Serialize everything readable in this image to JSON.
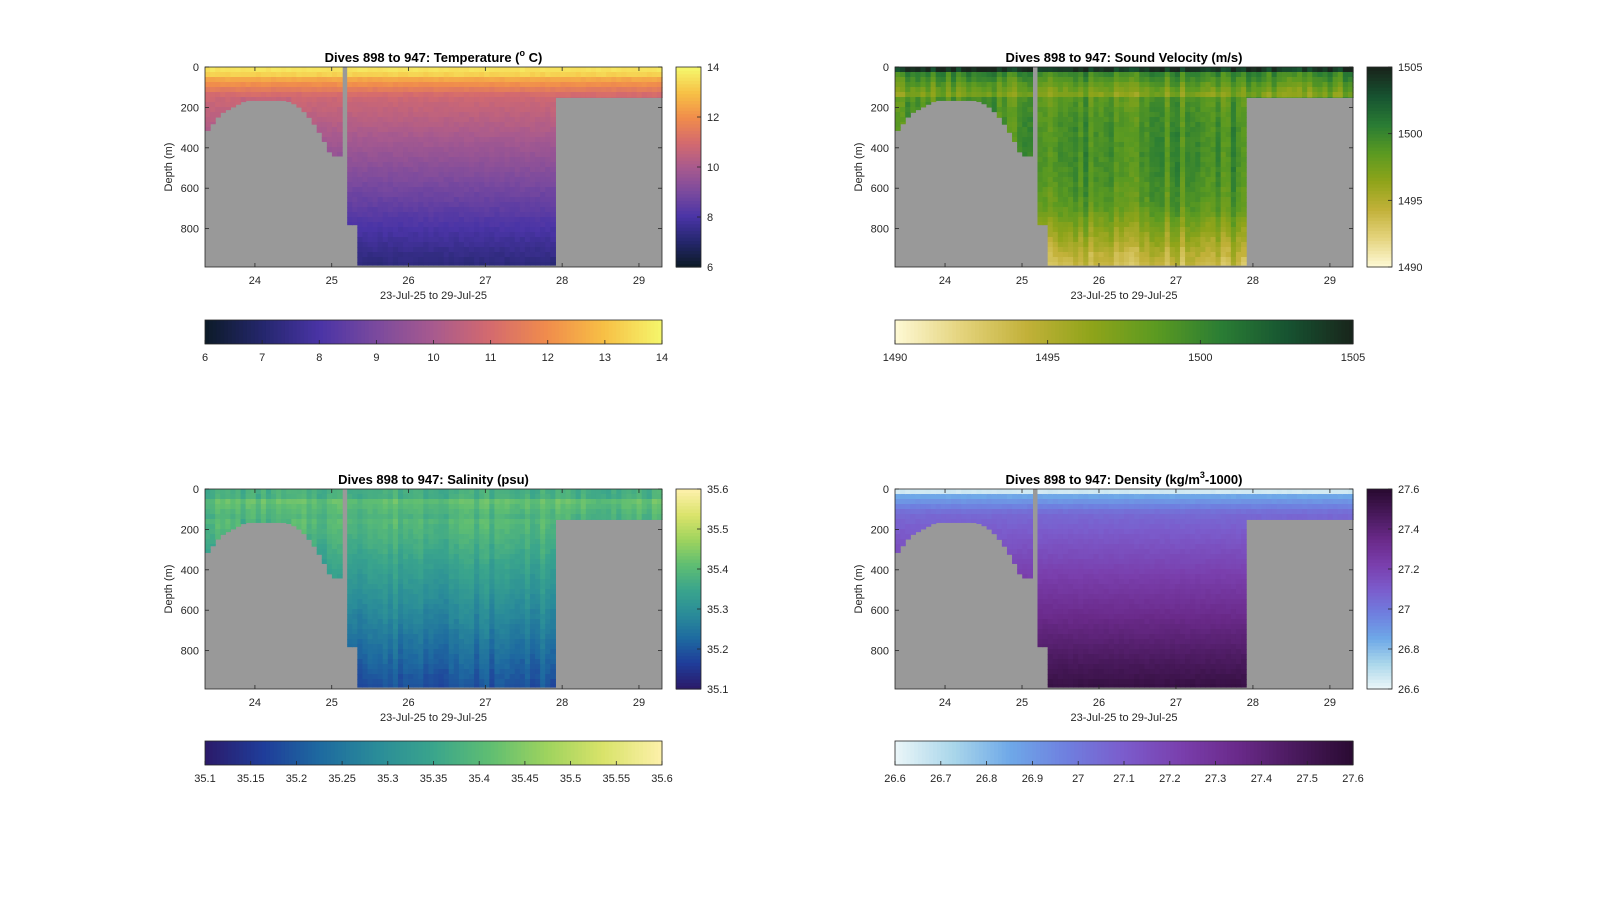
{
  "chart_data": [
    {
      "type": "heatmap",
      "variable": "temperature",
      "title": "Dives 898 to 947: Temperature (",
      "title_sup": "o",
      "title_suffix": " C)",
      "xlabel": "23-Jul-25 to 29-Jul-25",
      "ylabel": "Depth (m)",
      "xlim": [
        23.35,
        29.3
      ],
      "ylim": [
        0,
        990
      ],
      "xticks": [
        "24",
        "25",
        "26",
        "27",
        "28",
        "29"
      ],
      "yticks": [
        "0",
        "200",
        "400",
        "600",
        "800"
      ],
      "clim": [
        6,
        14
      ],
      "colorbar_vertical_ticks": [
        "6",
        "8",
        "10",
        "12",
        "14"
      ],
      "colorbar_horizontal_ticks": [
        "6",
        "7",
        "8",
        "9",
        "10",
        "11",
        "12",
        "13",
        "14"
      ],
      "colormap": [
        "#0d1b2a",
        "#25276e",
        "#4a34a6",
        "#7b4a9e",
        "#a85a8e",
        "#d46a6e",
        "#f08c4c",
        "#f7bf45",
        "#f5f56a"
      ],
      "no_data_color": "#999999"
    },
    {
      "type": "heatmap",
      "variable": "sound_velocity",
      "title": "Dives 898 to 947: Sound Velocity (m/s)",
      "xlabel": "23-Jul-25 to 29-Jul-25",
      "ylabel": "Depth (m)",
      "xlim": [
        23.35,
        29.3
      ],
      "ylim": [
        0,
        990
      ],
      "xticks": [
        "24",
        "25",
        "26",
        "27",
        "28",
        "29"
      ],
      "yticks": [
        "0",
        "200",
        "400",
        "600",
        "800"
      ],
      "clim": [
        1490,
        1505
      ],
      "colorbar_vertical_ticks": [
        "1490",
        "1495",
        "1500",
        "1505"
      ],
      "colorbar_horizontal_ticks": [
        "1490",
        "1495",
        "1500",
        "1505"
      ],
      "colormap": [
        "#fdf8d2",
        "#e4d37c",
        "#c2b139",
        "#8fa41a",
        "#5b9a21",
        "#2a7d34",
        "#175431",
        "#18261c"
      ],
      "no_data_color": "#999999"
    },
    {
      "type": "heatmap",
      "variable": "salinity",
      "title": "Dives 898 to 947: Salinity (psu)",
      "xlabel": "23-Jul-25 to 29-Jul-25",
      "ylabel": "Depth (m)",
      "xlim": [
        23.35,
        29.3
      ],
      "ylim": [
        0,
        990
      ],
      "xticks": [
        "24",
        "25",
        "26",
        "27",
        "28",
        "29"
      ],
      "yticks": [
        "0",
        "200",
        "400",
        "600",
        "800"
      ],
      "clim": [
        35.1,
        35.6
      ],
      "colorbar_vertical_ticks": [
        "35.1",
        "35.2",
        "35.3",
        "35.4",
        "35.5",
        "35.6"
      ],
      "colorbar_horizontal_ticks": [
        "35.1",
        "35.15",
        "35.2",
        "35.25",
        "35.3",
        "35.35",
        "35.4",
        "35.45",
        "35.5",
        "35.55",
        "35.6"
      ],
      "colormap": [
        "#2b1b6b",
        "#1f3d9a",
        "#1e6aa0",
        "#2a8c99",
        "#3aa58c",
        "#5fbe72",
        "#9ed35e",
        "#d9e36a",
        "#fcf0a8"
      ],
      "no_data_color": "#999999"
    },
    {
      "type": "heatmap",
      "variable": "density",
      "title": "Dives 898 to 947: Density (kg/m",
      "title_sup": "3",
      "title_suffix": "-1000)",
      "xlabel": "23-Jul-25 to 29-Jul-25",
      "ylabel": "Depth (m)",
      "xlim": [
        23.35,
        29.3
      ],
      "ylim": [
        0,
        990
      ],
      "xticks": [
        "24",
        "25",
        "26",
        "27",
        "28",
        "29"
      ],
      "yticks": [
        "0",
        "200",
        "400",
        "600",
        "800"
      ],
      "clim": [
        26.6,
        27.6
      ],
      "colorbar_vertical_ticks": [
        "26.6",
        "26.8",
        "27",
        "27.2",
        "27.4",
        "27.6"
      ],
      "colorbar_horizontal_ticks": [
        "26.6",
        "26.7",
        "26.8",
        "26.9",
        "27",
        "27.1",
        "27.2",
        "27.3",
        "27.4",
        "27.5",
        "27.6"
      ],
      "colormap": [
        "#e9f5f8",
        "#a9d6ea",
        "#6ea8e8",
        "#6f7fdf",
        "#7b5ccc",
        "#7a3fad",
        "#6a2a8a",
        "#4a1a5e",
        "#2b0b33"
      ],
      "no_data_color": "#999999"
    }
  ]
}
